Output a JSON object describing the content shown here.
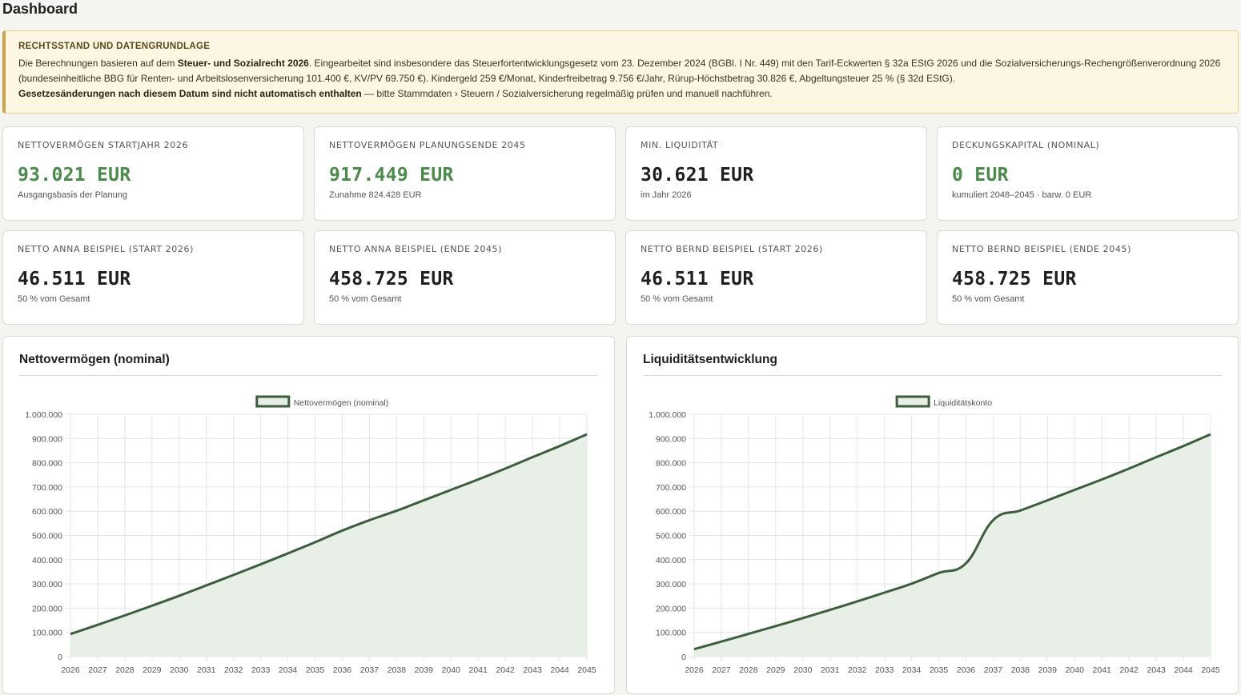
{
  "page": {
    "title": "Dashboard"
  },
  "notice": {
    "title": "Rechtsstand und Datengrundlage",
    "line1_pre": "Die Berechnungen basieren auf dem ",
    "line1_bold": "Steuer- und Sozialrecht 2026",
    "line1_post": ". Eingearbeitet sind insbesondere das Steuerfortentwicklungsgesetz vom 23. Dezember 2024 (BGBl. I Nr. 449) mit den Tarif-Eckwerten § 32a EStG 2026 und die Sozialversicherungs-Rechengrößenverordnung 2026 (bundeseinheitliche BBG für Renten- und Arbeitslosenversicherung 101.400 €, KV/PV 69.750 €). Kindergeld 259 €/Monat, Kinderfreibetrag 9.756 €/Jahr, Rürup-Höchstbetrag 30.826 €, Abgeltungsteuer 25 % (§ 32d EStG).",
    "line2_bold": "Gesetzesänderungen nach diesem Datum sind nicht automatisch enthalten",
    "line2_post": " — bitte Stammdaten › Steuern / Sozialversicherung regelmäßig prüfen und manuell nachführen."
  },
  "kpis": [
    {
      "label": "Nettovermögen Startjahr 2026",
      "value": "93.021 EUR",
      "sub": "Ausgangsbasis der Planung",
      "green": true
    },
    {
      "label": "Nettovermögen Planungsende 2045",
      "value": "917.449 EUR",
      "sub": "Zunahme 824.428 EUR",
      "green": true
    },
    {
      "label": "Min. Liquidität",
      "value": "30.621 EUR",
      "sub": "im Jahr 2026",
      "green": false
    },
    {
      "label": "Deckungskapital (nominal)",
      "value": "0 EUR",
      "sub": "kumuliert 2048–2045 · barw. 0 EUR",
      "green": true
    },
    {
      "label": "Netto Anna Beispiel (Start 2026)",
      "value": "46.511 EUR",
      "sub": "50 % vom Gesamt",
      "green": false
    },
    {
      "label": "Netto Anna Beispiel (Ende 2045)",
      "value": "458.725 EUR",
      "sub": "50 % vom Gesamt",
      "green": false
    },
    {
      "label": "Netto Bernd Beispiel (Start 2026)",
      "value": "46.511 EUR",
      "sub": "50 % vom Gesamt",
      "green": false
    },
    {
      "label": "Netto Bernd Beispiel (Ende 2045)",
      "value": "458.725 EUR",
      "sub": "50 % vom Gesamt",
      "green": false
    }
  ],
  "colors": {
    "line": "#3d5e3d",
    "fill": "#e8efe6",
    "accent_green": "#4a8a4a",
    "notice_border": "#c9a24a"
  },
  "chart_data": [
    {
      "type": "area",
      "title": "Nettovermögen (nominal)",
      "xlabel": "",
      "ylabel": "",
      "x": [
        "2026",
        "2027",
        "2028",
        "2029",
        "2030",
        "2031",
        "2032",
        "2033",
        "2034",
        "2035",
        "2036",
        "2037",
        "2038",
        "2039",
        "2040",
        "2041",
        "2042",
        "2043",
        "2044",
        "2045"
      ],
      "ylim": [
        0,
        1000000
      ],
      "yticks": [
        "0",
        "100.000",
        "200.000",
        "300.000",
        "400.000",
        "500.000",
        "600.000",
        "700.000",
        "800.000",
        "900.000",
        "1.000.000"
      ],
      "series": [
        {
          "name": "Nettovermögen (nominal)",
          "values": [
            93021,
            131000,
            170000,
            210000,
            251000,
            294000,
            337000,
            381000,
            426000,
            472000,
            520000,
            563000,
            602000,
            645000,
            688000,
            731000,
            776000,
            823000,
            869000,
            917449
          ]
        }
      ],
      "grid": true,
      "legend": "top"
    },
    {
      "type": "area",
      "title": "Liquiditätsentwicklung",
      "xlabel": "",
      "ylabel": "",
      "x": [
        "2026",
        "2027",
        "2028",
        "2029",
        "2030",
        "2031",
        "2032",
        "2033",
        "2034",
        "2035",
        "2036",
        "2037",
        "2038",
        "2039",
        "2040",
        "2041",
        "2042",
        "2043",
        "2044",
        "2045"
      ],
      "ylim": [
        0,
        1000000
      ],
      "yticks": [
        "0",
        "100.000",
        "200.000",
        "300.000",
        "400.000",
        "500.000",
        "600.000",
        "700.000",
        "800.000",
        "900.000",
        "1.000.000"
      ],
      "series": [
        {
          "name": "Liquiditätskonto",
          "values": [
            30621,
            62000,
            94000,
            126000,
            159000,
            193000,
            228000,
            264000,
            301000,
            345000,
            385000,
            563000,
            603000,
            645000,
            688000,
            731000,
            776000,
            823000,
            869000,
            917449
          ]
        }
      ],
      "grid": true,
      "legend": "top"
    }
  ]
}
